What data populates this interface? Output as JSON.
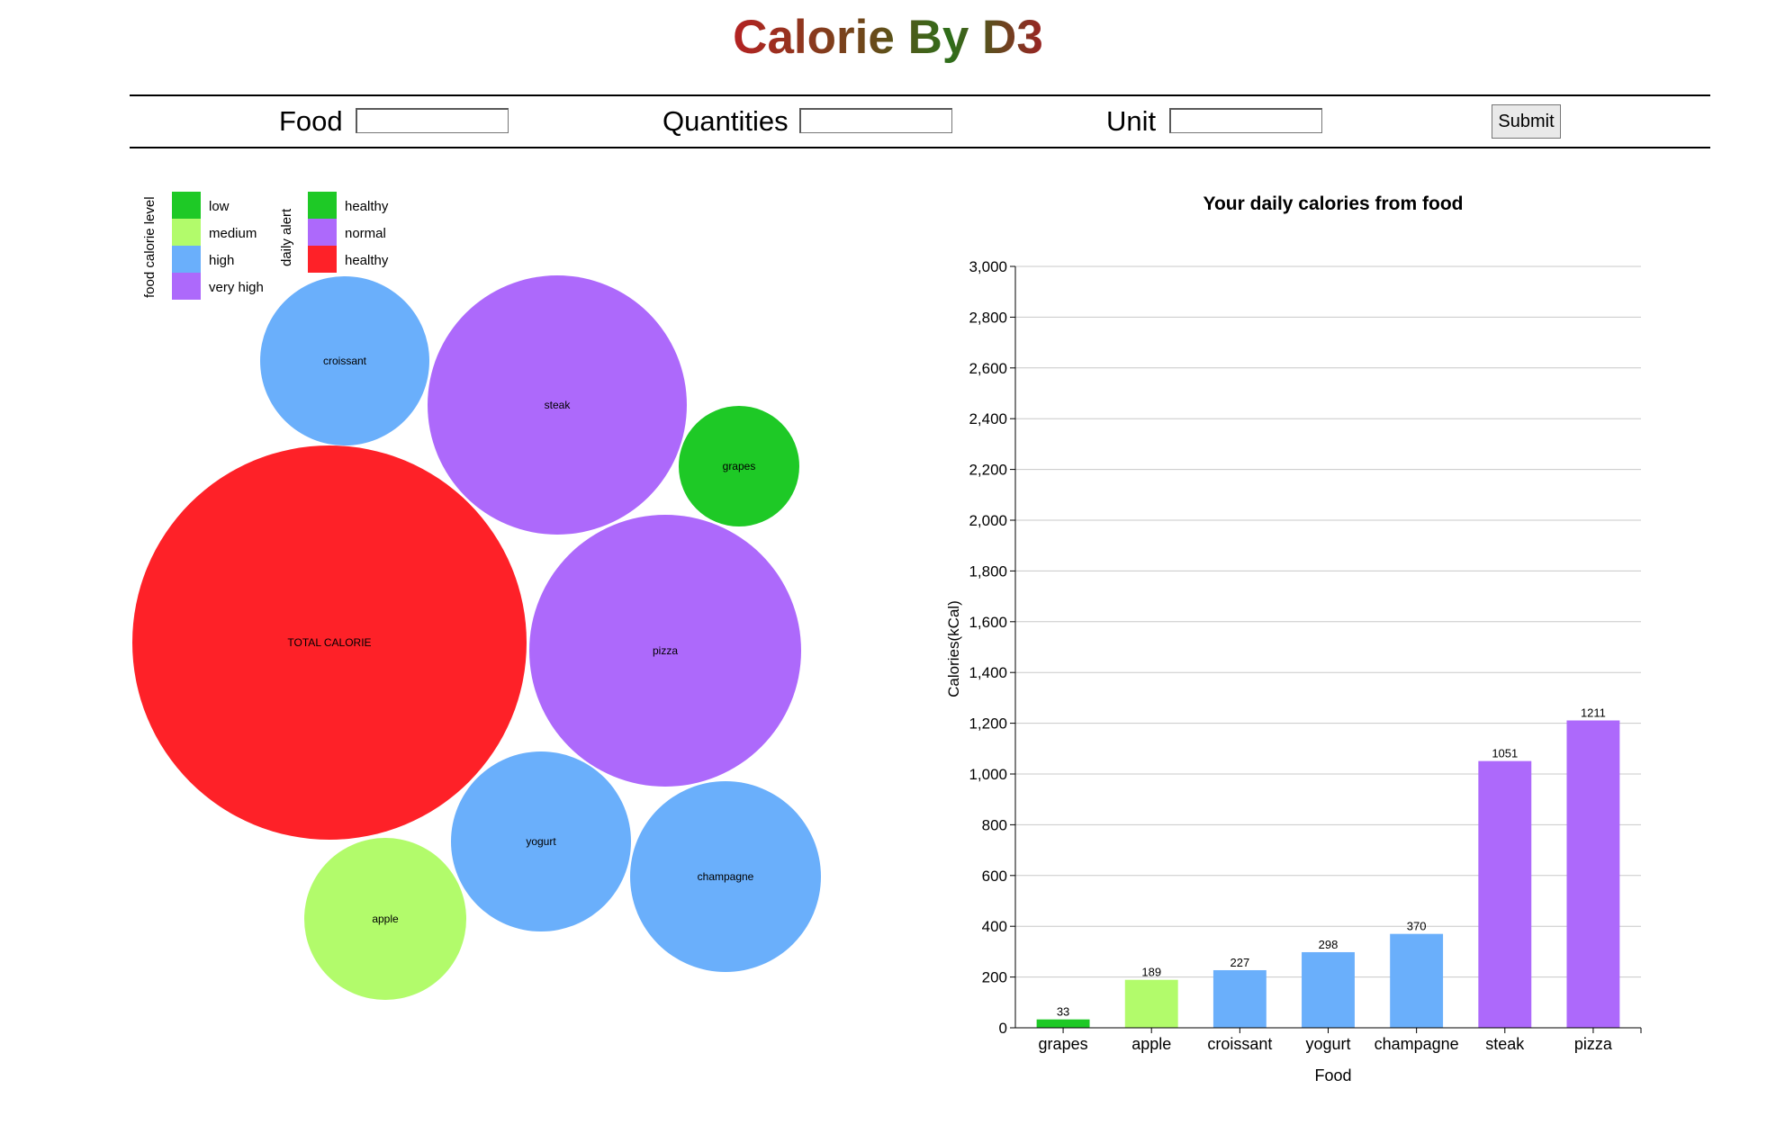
{
  "page_title": "Calorie By D3",
  "form": {
    "food_label": "Food",
    "quantities_label": "Quantities",
    "unit_label": "Unit",
    "food_value": "",
    "quantities_value": "",
    "unit_value": "",
    "submit_label": "Submit"
  },
  "legend": {
    "calorie_level_title": "food calorie level",
    "calorie_levels": [
      {
        "label": "low",
        "color": "#1ec926"
      },
      {
        "label": "medium",
        "color": "#b2fb6b"
      },
      {
        "label": "high",
        "color": "#6aaffb"
      },
      {
        "label": "very high",
        "color": "#ad69fb"
      }
    ],
    "daily_alert_title": "daily alert",
    "daily_alerts": [
      {
        "label": "healthy",
        "color": "#1ec926"
      },
      {
        "label": "normal",
        "color": "#ad69fb"
      },
      {
        "label": "healthy",
        "color": "#fe2128"
      }
    ]
  },
  "bubbles": [
    {
      "label": "TOTAL CALORIE",
      "color": "#fe2128"
    },
    {
      "label": "croissant",
      "color": "#6aaffb"
    },
    {
      "label": "steak",
      "color": "#ad69fb"
    },
    {
      "label": "grapes",
      "color": "#1ec926"
    },
    {
      "label": "pizza",
      "color": "#ad69fb"
    },
    {
      "label": "yogurt",
      "color": "#6aaffb"
    },
    {
      "label": "champagne",
      "color": "#6aaffb"
    },
    {
      "label": "apple",
      "color": "#b2fb6b"
    }
  ],
  "chart_data": {
    "type": "bar",
    "title": "Your daily calories from food",
    "xlabel": "Food",
    "ylabel": "Calories(kCal)",
    "ylim": [
      0,
      3000
    ],
    "yticks": [
      "0",
      "200",
      "400",
      "600",
      "800",
      "1,000",
      "1,200",
      "1,400",
      "1,600",
      "1,800",
      "2,000",
      "2,200",
      "2,400",
      "2,600",
      "2,800",
      "3,000"
    ],
    "grid": true,
    "categories": [
      "grapes",
      "apple",
      "croissant",
      "yogurt",
      "champagne",
      "steak",
      "pizza"
    ],
    "values": [
      33,
      189,
      227,
      298,
      370,
      1051,
      1211
    ],
    "colors": [
      "#1ec926",
      "#b2fb6b",
      "#6aaffb",
      "#6aaffb",
      "#6aaffb",
      "#ad69fb",
      "#ad69fb"
    ]
  }
}
